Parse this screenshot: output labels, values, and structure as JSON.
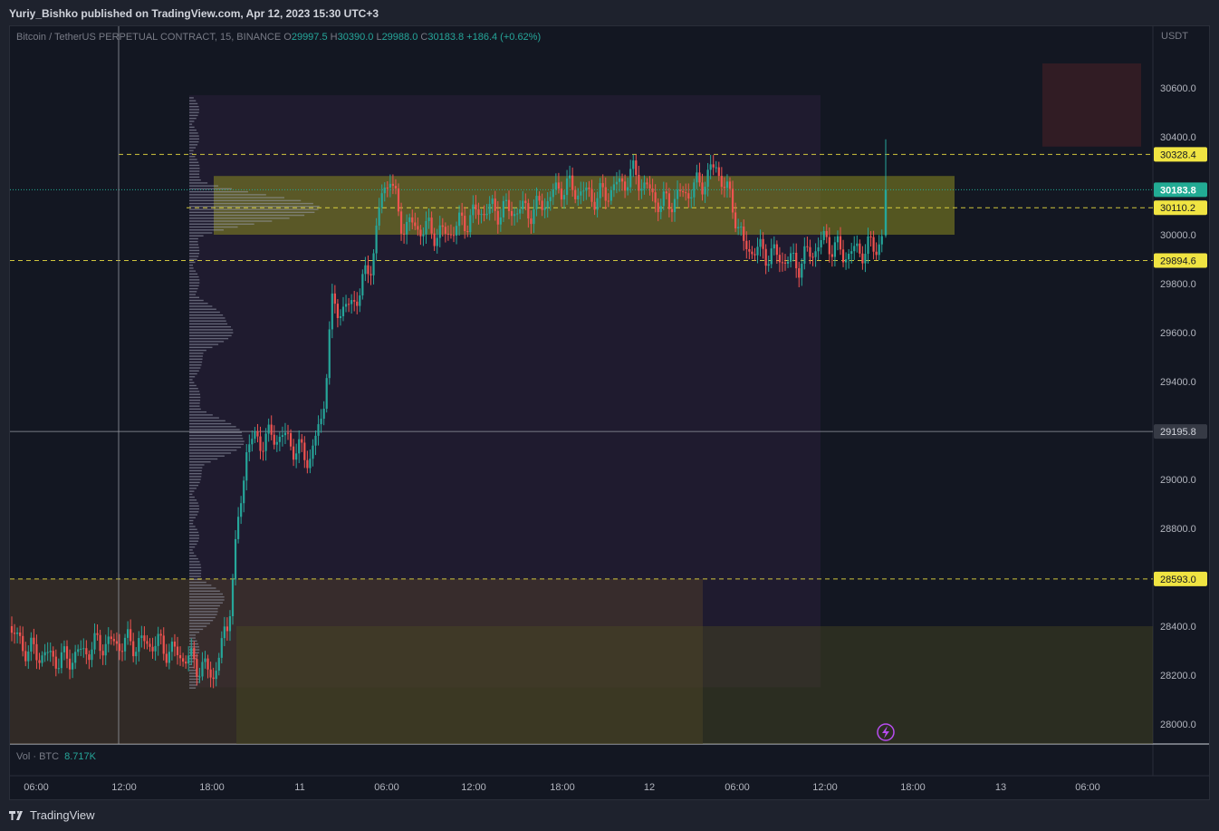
{
  "header": {
    "publisher_text": "Yuriy_Bishko published on TradingView.com, Apr 12, 2023 15:30 UTC+3"
  },
  "legend": {
    "symbol": "Bitcoin / TetherUS PERPETUAL CONTRACT, 15, BINANCE",
    "open_label": "O",
    "open": "29997.5",
    "high_label": "H",
    "high": "30390.0",
    "low_label": "L",
    "low": "29988.0",
    "close_label": "C",
    "close": "30183.8",
    "change": "+186.4 (+0.62%)"
  },
  "volume_legend": {
    "label": "Vol · BTC",
    "value": "8.717K"
  },
  "footer": {
    "brand": "TradingView"
  },
  "axis": {
    "unit": "USDT"
  },
  "colors": {
    "up": "#26a69a",
    "down": "#ef5350",
    "background": "#131722",
    "level_line": "#f0e442",
    "crosshair": "#9598a1",
    "zone_yellow": "#8a8a1e"
  },
  "icons": {
    "alert": "lightning-icon",
    "logo": "tradingview-logo-icon"
  },
  "chart_data": {
    "type": "candlestick",
    "symbol": "BTCUSDT.P",
    "interval": "15",
    "y_ticks": [
      30600,
      30400,
      30200,
      30000,
      29800,
      29600,
      29400,
      29200,
      29000,
      28800,
      28600,
      28400,
      28200,
      28000
    ],
    "y_tick_labels": [
      "30600.0",
      "30400.0",
      "30000.0",
      "29800.0",
      "29600.0",
      "29400.0",
      "29000.0",
      "28800.0",
      "28400.0",
      "28200.0",
      "28000.0"
    ],
    "x_tick_labels": [
      "06:00",
      "12:00",
      "18:00",
      "11",
      "06:00",
      "12:00",
      "18:00",
      "12",
      "06:00",
      "12:00",
      "18:00",
      "13",
      "06:00"
    ],
    "ylim": [
      27915,
      30850
    ],
    "horizontal_levels": [
      {
        "value": 30328.4,
        "label": "30328.4",
        "color": "#f0e442",
        "style": "dashed"
      },
      {
        "value": 30110.2,
        "label": "30110.2",
        "color": "#f0e442",
        "style": "dashed"
      },
      {
        "value": 29894.6,
        "label": "29894.6",
        "color": "#f0e442",
        "style": "dashed"
      },
      {
        "value": 28593.0,
        "label": "28593.0",
        "color": "#f0e442",
        "style": "dashed"
      }
    ],
    "current_price": {
      "value": 30183.8,
      "label": "30183.8",
      "color": "#22ab94"
    },
    "crosshair_price": {
      "value": 29195.8,
      "label": "29195.8"
    },
    "zones": [
      {
        "name": "resistance",
        "from": 30000,
        "to": 30240,
        "color": "#9a9a2a"
      },
      {
        "name": "lower-box",
        "from": 27910,
        "to": 28593,
        "color": "#5a4a2a"
      },
      {
        "name": "demand",
        "from": 27910,
        "to": 28400,
        "color": "#5a5a2a"
      },
      {
        "name": "supply",
        "from": 30360,
        "to": 30700,
        "color": "#3a1e26"
      }
    ],
    "ohlc_last": {
      "open": 29997.5,
      "high": 30390.0,
      "low": 29988.0,
      "close": 30183.8
    }
  }
}
